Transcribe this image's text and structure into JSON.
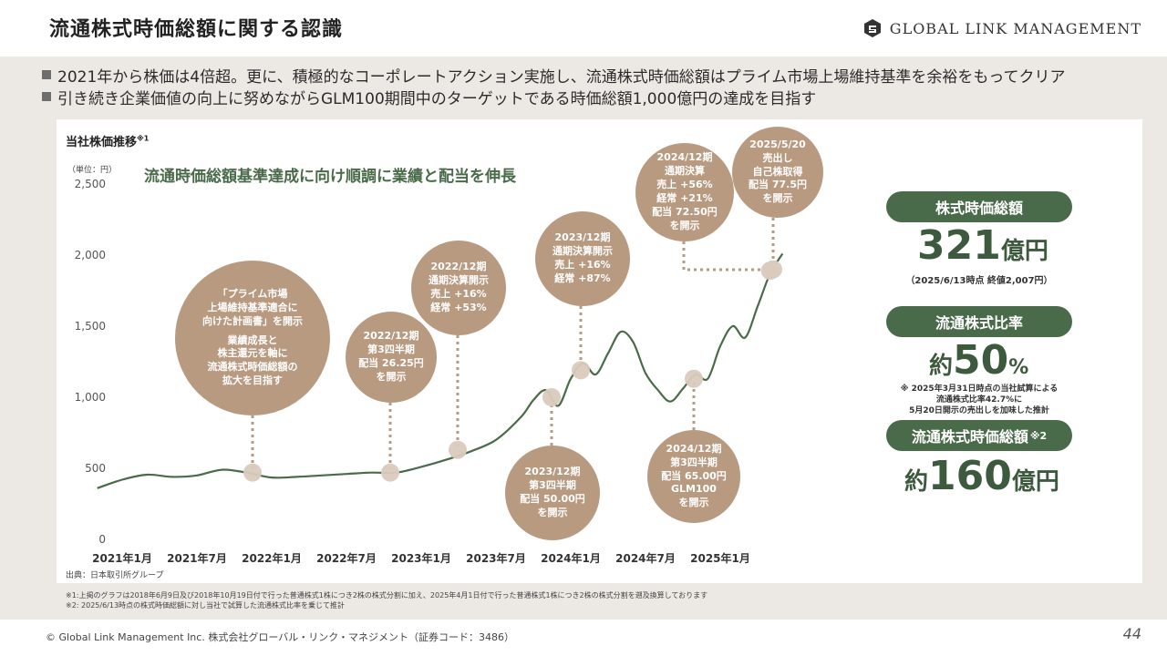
{
  "header": {
    "title": "流通株式時価総額に関する認識",
    "logo_text": "GLOBAL LINK MANAGEMENT",
    "logo_icon": "glm-logo-icon"
  },
  "bullets": [
    "2021年から株価は4倍超。更に、積極的なコーポレートアクション実施し、流通株式時価総額はプライム市場上場維持基準を余裕をもってクリア",
    "引き続き企業価値の向上に努めながらGLM100期間中のターゲットである時価総額1,000億円の達成を目指す"
  ],
  "chart_panel": {
    "title": "当社株価推移",
    "title_note": "※1",
    "unit": "（単位：円）",
    "subtitle": "流通時価総額基準達成に向け順調に業績と配当を伸長",
    "source": "出典：日本取引所グループ"
  },
  "chart_data": {
    "type": "line",
    "ylim": [
      0,
      2500
    ],
    "y_ticks": [
      "2,500",
      "2,000",
      "1,500",
      "1,000",
      "500",
      "0"
    ],
    "x_ticks": [
      "2021年1月",
      "2021年7月",
      "2022年1月",
      "2022年7月",
      "2023年1月",
      "2023年7月",
      "2024年1月",
      "2024年7月",
      "2025年1月"
    ],
    "series": [
      {
        "color": "#4a6b4a",
        "points": [
          [
            "2020-11",
            360
          ],
          [
            "2021-01",
            420
          ],
          [
            "2021-03",
            455
          ],
          [
            "2021-05",
            440
          ],
          [
            "2021-07",
            450
          ],
          [
            "2021-09",
            490
          ],
          [
            "2021-11",
            470
          ],
          [
            "2022-01",
            435
          ],
          [
            "2022-03",
            440
          ],
          [
            "2022-05",
            450
          ],
          [
            "2022-07",
            460
          ],
          [
            "2022-09",
            470
          ],
          [
            "2022-11",
            470
          ],
          [
            "2023-01",
            510
          ],
          [
            "2023-03",
            560
          ],
          [
            "2023-05",
            620
          ],
          [
            "2023-07",
            700
          ],
          [
            "2023-09",
            860
          ],
          [
            "2023-10",
            980
          ],
          [
            "2023-11",
            1050
          ],
          [
            "2023-12",
            940
          ],
          [
            "2024-01",
            1130
          ],
          [
            "2024-02",
            1240
          ],
          [
            "2024-03",
            1160
          ],
          [
            "2024-04",
            1310
          ],
          [
            "2024-05",
            1460
          ],
          [
            "2024-06",
            1390
          ],
          [
            "2024-07",
            1170
          ],
          [
            "2024-08",
            1050
          ],
          [
            "2024-09",
            970
          ],
          [
            "2024-10",
            1060
          ],
          [
            "2024-11",
            1160
          ],
          [
            "2024-12",
            1130
          ],
          [
            "2025-01",
            1360
          ],
          [
            "2025-02",
            1500
          ],
          [
            "2025-03",
            1420
          ],
          [
            "2025-04",
            1640
          ],
          [
            "2025-05",
            1870
          ],
          [
            "2025-06",
            2010
          ]
        ]
      }
    ],
    "markers": [
      {
        "date": "2021-11",
        "value": 470
      },
      {
        "date": "2022-11",
        "value": 470
      },
      {
        "date": "2023-05",
        "value": 630
      },
      {
        "date": "2023-12",
        "value": 1000
      },
      {
        "date": "2024-01",
        "value": 1190
      },
      {
        "date": "2024-11",
        "value": 1130
      },
      {
        "date": "2025-05",
        "value": 1890
      },
      {
        "date": "2025-06",
        "value": 1900
      }
    ]
  },
  "bubbles": [
    {
      "lines": [
        "「プライム市場",
        "上場維持基準適合に",
        "向けた計画書」を開示",
        "",
        "業績成長と",
        "株主還元を軸に",
        "流通株式時価総額の",
        "拡大を目指す"
      ]
    },
    {
      "lines": [
        "2022/12期",
        "第3四半期",
        "配当 26.25円",
        "を開示"
      ]
    },
    {
      "lines": [
        "2022/12期",
        "通期決算開示",
        "売上 +16%",
        "経常 +53%"
      ]
    },
    {
      "lines": [
        "2023/12期",
        "第3四半期",
        "配当 50.00円",
        "を開示"
      ]
    },
    {
      "lines": [
        "2023/12期",
        "通期決算開示",
        "売上 +16%",
        "経常 +87%"
      ]
    },
    {
      "lines": [
        "2024/12期",
        "第3四半期",
        "配当 65.00円",
        "GLM100",
        "を開示"
      ]
    },
    {
      "lines": [
        "2024/12期",
        "通期決算",
        "売上 +56%",
        "経常 +21%",
        "配当 72.50円",
        "を開示"
      ]
    },
    {
      "lines": [
        "2025/5/20",
        "売出し",
        "自己株取得",
        "配当 77.5円",
        "を開示"
      ]
    }
  ],
  "kpis": {
    "market_cap": {
      "label": "株式時価総額",
      "value": "321",
      "unit": "億円",
      "note": "（2025/6/13時点 終値2,007円）"
    },
    "float_ratio": {
      "label": "流通株式比率",
      "prefix": "約",
      "value": "50",
      "unit": "%",
      "note": [
        "※ 2025年3月31日時点の当社試算による",
        "流通株式比率42.7%に",
        "5月20日開示の売出しを加味した推計"
      ]
    },
    "float_cap": {
      "label": "流通株式時価総額",
      "label_note": "※2",
      "prefix": "約",
      "value": "160",
      "unit": "億円"
    }
  },
  "footnotes": [
    "※1:上掲のグラフは2018年6月9日及び2018年10月19日付で行った普通株式1株につき2株の株式分割に加え、2025年4月1日付で行った普通株式1株につき2株の株式分割を遡及換算しております",
    "※2:  2025/6/13時点の株式時価総額に対し当社で試算した流通株式比率を乗じて推計"
  ],
  "footer": {
    "copyright": "© Global Link Management Inc. 株式会社グローバル・リンク・マネジメント（証券コード：3486）",
    "page": "44"
  },
  "colors": {
    "accent_green": "#4a6b4a",
    "bubble": "#b89a80",
    "band": "#ece9e4",
    "leader": "#b89a80"
  }
}
